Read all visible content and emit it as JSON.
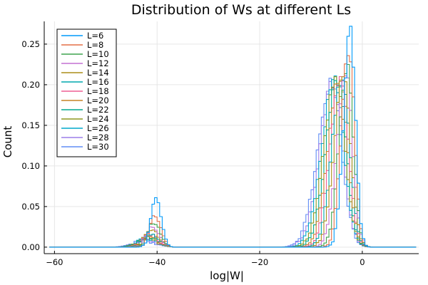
{
  "chart_data": {
    "type": "line",
    "title": "Distribution of Ws at different Ls",
    "xlabel": "log|W|",
    "ylabel": "Count",
    "xlim": [
      -62,
      11
    ],
    "ylim": [
      -0.008,
      0.278
    ],
    "xticks": [
      -60,
      -40,
      -20,
      0
    ],
    "xtick_labels": [
      "−60",
      "−40",
      "−20",
      "0"
    ],
    "yticks": [
      0.0,
      0.05,
      0.1,
      0.15,
      0.2,
      0.25
    ],
    "ytick_labels": [
      "0.00",
      "0.05",
      "0.10",
      "0.15",
      "0.20",
      "0.25"
    ],
    "grid": true,
    "legend_position": "top-left",
    "step": true,
    "series": [
      {
        "name": "L=6",
        "color": "#009AFA",
        "peak1": {
          "x": -40.2,
          "h": 0.058,
          "w": 1.0
        },
        "peak2": {
          "x": -2.3,
          "h": 0.268,
          "w": 1.3
        },
        "frac1": 0.08
      },
      {
        "name": "L=8",
        "color": "#E36F47",
        "peak1": {
          "x": -40.4,
          "h": 0.04,
          "w": 1.1
        },
        "peak2": {
          "x": -2.6,
          "h": 0.243,
          "w": 1.45
        },
        "frac1": 0.07
      },
      {
        "name": "L=10",
        "color": "#3EA44E",
        "peak1": {
          "x": -40.6,
          "h": 0.03,
          "w": 1.2
        },
        "peak2": {
          "x": -2.9,
          "h": 0.221,
          "w": 1.6
        },
        "frac1": 0.06
      },
      {
        "name": "L=12",
        "color": "#C371D2",
        "peak1": {
          "x": -40.8,
          "h": 0.024,
          "w": 1.3
        },
        "peak2": {
          "x": -3.2,
          "h": 0.214,
          "w": 1.75
        },
        "frac1": 0.05
      },
      {
        "name": "L=14",
        "color": "#AC8E18",
        "peak1": {
          "x": -41.0,
          "h": 0.02,
          "w": 1.4
        },
        "peak2": {
          "x": -3.6,
          "h": 0.212,
          "w": 1.85
        },
        "frac1": 0.045
      },
      {
        "name": "L=16",
        "color": "#00A9AD",
        "peak1": {
          "x": -41.2,
          "h": 0.017,
          "w": 1.5
        },
        "peak2": {
          "x": -3.9,
          "h": 0.21,
          "w": 1.95
        },
        "frac1": 0.04
      },
      {
        "name": "L=18",
        "color": "#ED5E93",
        "peak1": {
          "x": -41.4,
          "h": 0.015,
          "w": 1.6
        },
        "peak2": {
          "x": -4.2,
          "h": 0.208,
          "w": 2.05
        },
        "frac1": 0.036
      },
      {
        "name": "L=20",
        "color": "#C68225",
        "peak1": {
          "x": -41.6,
          "h": 0.013,
          "w": 1.7
        },
        "peak2": {
          "x": -4.5,
          "h": 0.207,
          "w": 2.15
        },
        "frac1": 0.033
      },
      {
        "name": "L=22",
        "color": "#00A98D",
        "peak1": {
          "x": -41.8,
          "h": 0.012,
          "w": 1.8
        },
        "peak2": {
          "x": -4.8,
          "h": 0.206,
          "w": 2.25
        },
        "frac1": 0.03
      },
      {
        "name": "L=24",
        "color": "#8E971E",
        "peak1": {
          "x": -42.0,
          "h": 0.011,
          "w": 1.9
        },
        "peak2": {
          "x": -5.1,
          "h": 0.205,
          "w": 2.35
        },
        "frac1": 0.028
      },
      {
        "name": "L=26",
        "color": "#00A8CB",
        "peak1": {
          "x": -42.2,
          "h": 0.01,
          "w": 2.0
        },
        "peak2": {
          "x": -5.4,
          "h": 0.204,
          "w": 2.45
        },
        "frac1": 0.026
      },
      {
        "name": "L=28",
        "color": "#9B7FE9",
        "peak1": {
          "x": -42.4,
          "h": 0.009,
          "w": 2.1
        },
        "peak2": {
          "x": -5.7,
          "h": 0.203,
          "w": 2.55
        },
        "frac1": 0.024
      },
      {
        "name": "L=30",
        "color": "#618DF6",
        "peak1": {
          "x": -42.6,
          "h": 0.008,
          "w": 2.2
        },
        "peak2": {
          "x": -6.0,
          "h": 0.202,
          "w": 2.65
        },
        "frac1": 0.022
      }
    ]
  }
}
